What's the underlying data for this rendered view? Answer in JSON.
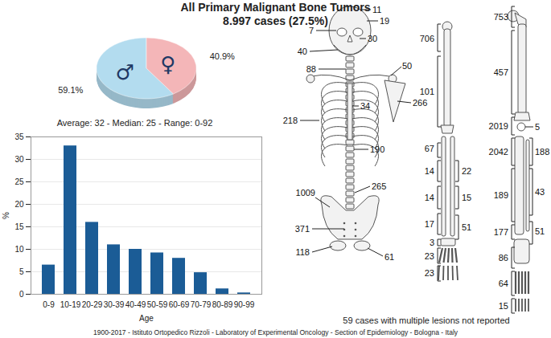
{
  "title": "All Primary Malignant Bone Tumors",
  "subtitle": "8.997 cases (27.5%)",
  "chart_data": [
    {
      "type": "pie",
      "categories": [
        "♂",
        "♀"
      ],
      "values": [
        59.1,
        40.9
      ],
      "value_labels": [
        "59.1%",
        "40.9%"
      ],
      "colors": [
        "#b3dcef",
        "#f4b6b8"
      ],
      "data_labels": true
    },
    {
      "type": "bar",
      "title": "Average: 32 - Median: 25 - Range: 0-92",
      "x_label": "Age",
      "y_label": "%",
      "categories": [
        "0-9",
        "10-19",
        "20-29",
        "30-39",
        "40-49",
        "50-59",
        "60-69",
        "70-79",
        "80-89",
        "90-99"
      ],
      "values": [
        6.5,
        33,
        16,
        11,
        10,
        9.2,
        8,
        4.8,
        1.2,
        0.3
      ],
      "color": "#1b5c96",
      "ylim": [
        0,
        35
      ],
      "yticks": [
        0,
        5,
        10,
        15,
        20,
        25,
        30,
        35
      ],
      "grid": true
    }
  ],
  "skeleton": {
    "values": [
      11,
      19,
      7,
      30,
      40,
      88,
      50,
      266,
      34,
      218,
      190,
      265,
      1009,
      371,
      118,
      61,
      706,
      101,
      67,
      14,
      22,
      14,
      15,
      17,
      51,
      3,
      23,
      23,
      753,
      457,
      2019,
      5,
      2042,
      188,
      189,
      43,
      177,
      51,
      86,
      64,
      15
    ],
    "note": "59 cases with multiple lesions not reported"
  },
  "footer": "1900-2017 - Istituto Ortopedico Rizzoli - Laboratory of Experimental Oncology - Section of Epidemiology - Bologna - Italy"
}
